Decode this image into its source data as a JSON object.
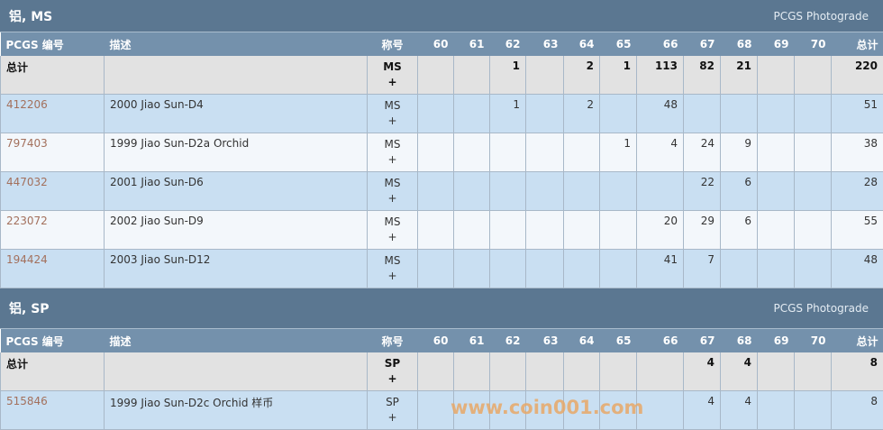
{
  "columns": [
    "PCGS 编号",
    "描述",
    "称号",
    "60",
    "61",
    "62",
    "63",
    "64",
    "65",
    "66",
    "67",
    "68",
    "69",
    "70",
    "总计"
  ],
  "sections": [
    {
      "title": "铝, MS",
      "photograde": "PCGS Photograde",
      "rows": [
        {
          "id": "总计",
          "desc": "",
          "des": "MS",
          "plus": "+",
          "grades": [
            "",
            "",
            "1",
            "",
            "2",
            "1",
            "113",
            "82",
            "21",
            "",
            ""
          ],
          "total": "220"
        },
        {
          "id": "412206",
          "desc": "2000 Jiao Sun-D4",
          "des": "MS",
          "plus": "+",
          "grades": [
            "",
            "",
            "1",
            "",
            "2",
            "",
            "48",
            "",
            "",
            "",
            ""
          ],
          "total": "51"
        },
        {
          "id": "797403",
          "desc": "1999 Jiao Sun-D2a Orchid",
          "des": "MS",
          "plus": "+",
          "grades": [
            "",
            "",
            "",
            "",
            "",
            "1",
            "4",
            "24",
            "9",
            "",
            ""
          ],
          "total": "38"
        },
        {
          "id": "447032",
          "desc": "2001 Jiao Sun-D6",
          "des": "MS",
          "plus": "+",
          "grades": [
            "",
            "",
            "",
            "",
            "",
            "",
            "",
            "22",
            "6",
            "",
            ""
          ],
          "total": "28"
        },
        {
          "id": "223072",
          "desc": "2002 Jiao Sun-D9",
          "des": "MS",
          "plus": "+",
          "grades": [
            "",
            "",
            "",
            "",
            "",
            "",
            "20",
            "29",
            "6",
            "",
            ""
          ],
          "total": "55"
        },
        {
          "id": "194424",
          "desc": "2003 Jiao Sun-D12",
          "des": "MS",
          "plus": "+",
          "grades": [
            "",
            "",
            "",
            "",
            "",
            "",
            "41",
            "7",
            "",
            "",
            ""
          ],
          "total": "48"
        }
      ]
    },
    {
      "title": "铝, SP",
      "photograde": "PCGS Photograde",
      "rows": [
        {
          "id": "总计",
          "desc": "",
          "des": "SP",
          "plus": "+",
          "grades": [
            "",
            "",
            "",
            "",
            "",
            "",
            "",
            "4",
            "4",
            "",
            ""
          ],
          "total": "8"
        },
        {
          "id": "515846",
          "desc": "1999 Jiao Sun-D2c Orchid 样币",
          "des": "SP",
          "plus": "+",
          "grades": [
            "",
            "",
            "",
            "",
            "",
            "",
            "",
            "4",
            "4",
            "",
            ""
          ],
          "total": "8"
        }
      ]
    }
  ],
  "watermark": "www.coin001.com"
}
